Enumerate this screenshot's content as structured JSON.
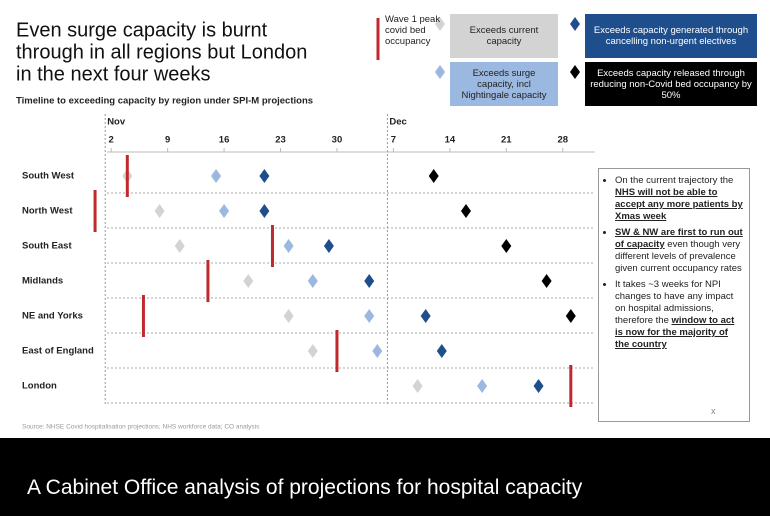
{
  "chart_data": {
    "type": "timeline",
    "title": [
      "Even surge capacity is burnt",
      "through in all regions but London",
      "in the next four weeks"
    ],
    "subtitle": "Timeline to exceeding capacity by region under SPI-M projections",
    "categories": [
      "South West",
      "North West",
      "South East",
      "Midlands",
      "NE and Yorks",
      "East of England",
      "London"
    ],
    "xlim": [
      -1,
      62
    ],
    "xticks": [
      2,
      9,
      16,
      23,
      30,
      {
        "value": 37,
        "label": "7"
      },
      {
        "value": 44,
        "label": "14"
      },
      {
        "value": 51,
        "label": "21"
      },
      {
        "value": 58,
        "label": "28"
      }
    ],
    "months": [
      {
        "value": 2,
        "label": "Nov"
      },
      {
        "value": 37,
        "label": "Dec"
      }
    ],
    "series": [
      {
        "name": "Wave 1 peak covid bed occupancy",
        "marker": "line",
        "color": "#c0282d",
        "values": [
          4,
          0,
          22,
          14,
          6,
          30,
          59
        ]
      },
      {
        "name": "Exceeds current capacity",
        "marker": "diamond",
        "color": "#d3d3d3",
        "values": [
          4,
          8,
          10.5,
          19,
          24,
          27,
          40
        ]
      },
      {
        "name": "Exceeds surge capacity, incl Nightingale capacity",
        "marker": "diamond",
        "color": "#9ab8e0",
        "values": [
          15,
          16,
          24,
          27,
          34,
          35,
          48
        ]
      },
      {
        "name": "Exceeds capacity generated through cancelling non-urgent electives",
        "marker": "diamond",
        "color": "#1f4e8c",
        "values": [
          21,
          21,
          29,
          34,
          41,
          43,
          55
        ]
      },
      {
        "name": "Exceeds capacity released through reducing non-Covid bed occupancy by 50%",
        "marker": "diamond",
        "color": "#000000",
        "values": [
          42,
          46,
          51,
          56,
          59,
          null,
          null
        ]
      }
    ],
    "notes": [
      [
        {
          "text": "On the current trajectory the "
        },
        {
          "text": "NHS will not be able to accept any more patients by Xmas week",
          "style": "bold-underline"
        }
      ],
      [
        {
          "text": "SW & NW are first to run out of capacity",
          "style": "bold-underline"
        },
        {
          "text": " even though very different levels of prevalence given current occupancy rates"
        }
      ],
      [
        {
          "text": "It takes ~3 weeks for NPI changes to have any impact on hospital admissions, therefore the "
        },
        {
          "text": "window to act is now for the majority of the country",
          "style": "bold-underline"
        }
      ]
    ],
    "close_mark": "x",
    "source": "Source: NHSE Covid hospitalisation projections; NHS workforce data; CO analysis",
    "caption": "A Cabinet Office analysis of projections for hospital capacity"
  }
}
